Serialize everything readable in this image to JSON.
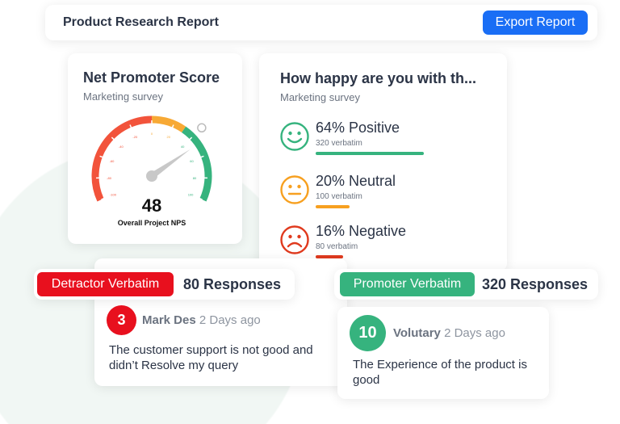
{
  "header": {
    "title": "Product Research Report",
    "export_label": "Export Report",
    "accent": "#1a6ef5"
  },
  "nps": {
    "title": "Net Promoter Score",
    "subtitle": "Marketing survey",
    "score": 48,
    "score_text": "48",
    "caption": "Overall Project NPS",
    "ticks": [
      "-100",
      "-80",
      "-60",
      "-40",
      "-20",
      "0",
      "20",
      "40",
      "60",
      "80",
      "100"
    ],
    "range": [
      -100,
      100
    ],
    "segments": [
      {
        "from": -100,
        "to": 0,
        "color": "#f2533b"
      },
      {
        "from": 0,
        "to": 30,
        "color": "#f7a935"
      },
      {
        "from": 30,
        "to": 100,
        "color": "#36b37e"
      }
    ]
  },
  "happy": {
    "title": "How happy are you with th...",
    "subtitle": "Marketing survey",
    "items": [
      {
        "label": "64% Positive",
        "sub": "320 verbatim",
        "percent": 64,
        "color": "#36b37e",
        "icon": "smile-face-icon"
      },
      {
        "label": "20% Neutral",
        "sub": "100 verbatim",
        "percent": 20,
        "color": "#f7a020",
        "icon": "neutral-face-icon"
      },
      {
        "label": "16% Negative",
        "sub": "80 verbatim",
        "percent": 16,
        "color": "#e03a1e",
        "icon": "sad-face-icon"
      }
    ]
  },
  "detractor": {
    "pill": "Detractor Verbatim",
    "responses": "80 Responses",
    "color": "#e8101e",
    "comment": {
      "count": "3",
      "name": "Mark Des",
      "ago": "2 Days ago",
      "text": "The customer support is not good and didn’t Resolve my query"
    }
  },
  "promoter": {
    "pill": "Promoter Verbatim",
    "responses": "320 Responses",
    "color": "#36b37e",
    "comment": {
      "count": "10",
      "name": "Volutary",
      "ago": "2 Days ago",
      "text": "The Experience of the product is good"
    }
  }
}
